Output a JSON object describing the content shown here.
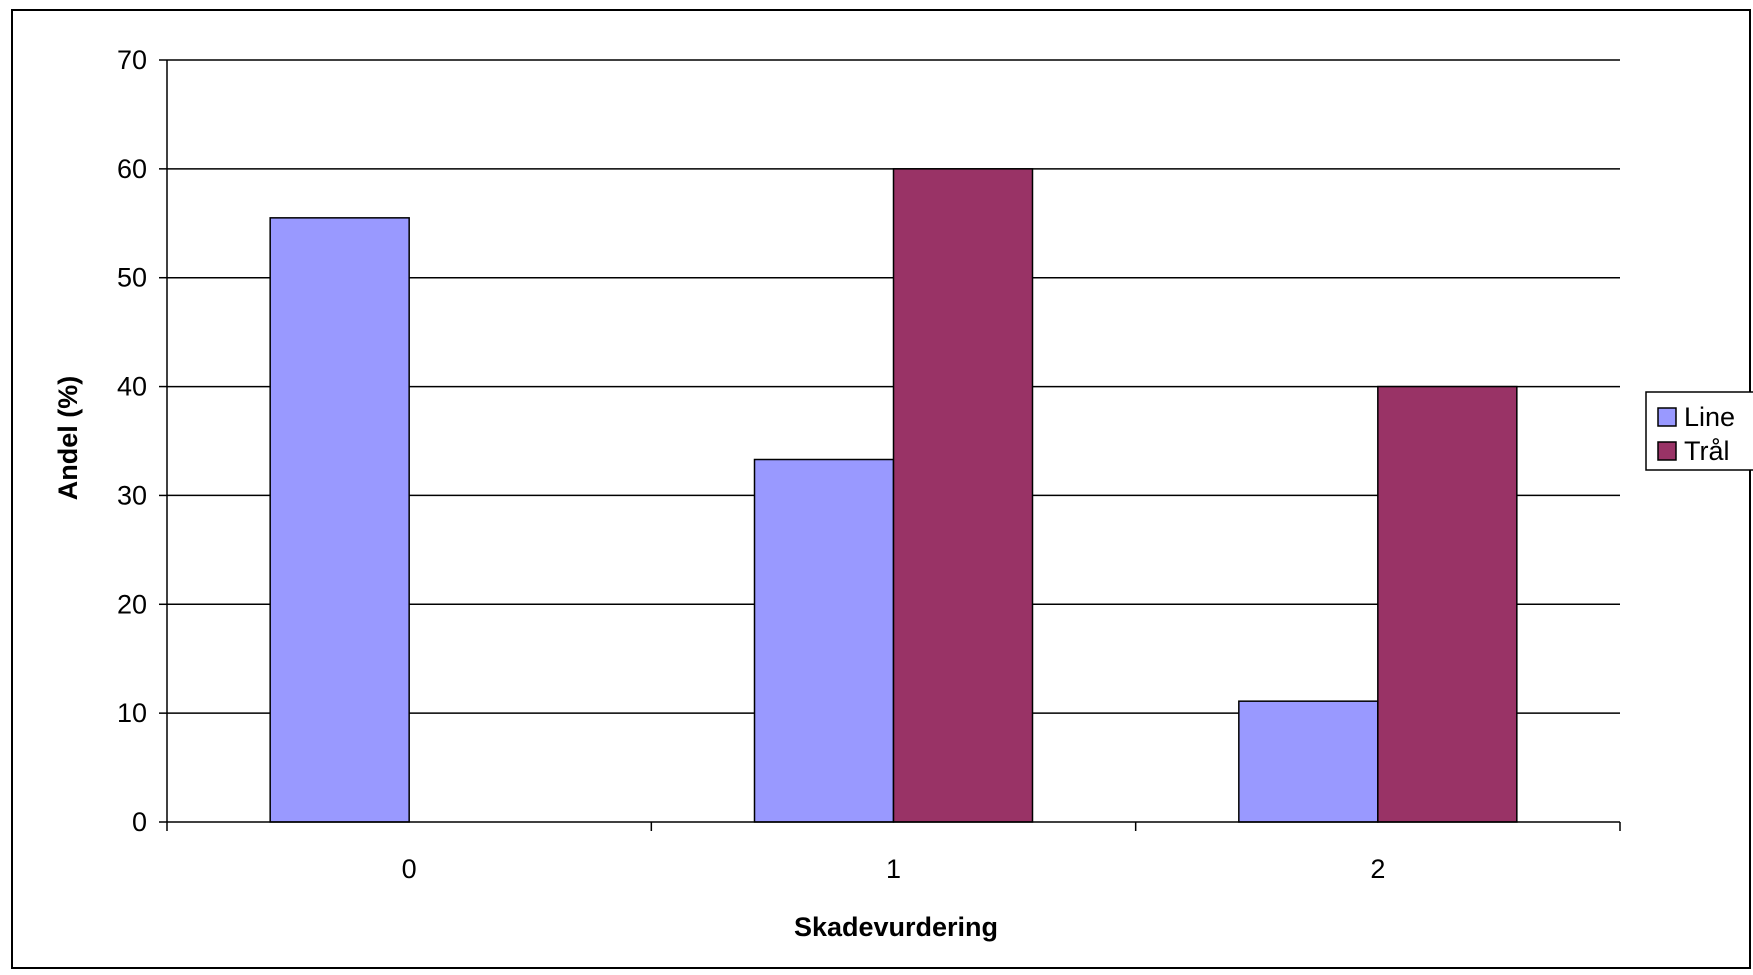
{
  "chart_data": {
    "type": "bar",
    "categories": [
      "0",
      "1",
      "2"
    ],
    "series": [
      {
        "name": "Line",
        "values": [
          55.5,
          33.3,
          11.1
        ],
        "color": "#9999ff"
      },
      {
        "name": "Trål",
        "values": [
          0,
          60,
          40
        ],
        "color": "#993366"
      }
    ],
    "title": "",
    "xlabel": "Skadevurdering",
    "ylabel": "Andel (%)",
    "ylim": [
      0,
      70
    ],
    "yticks": [
      0,
      10,
      20,
      30,
      40,
      50,
      60,
      70
    ],
    "grid": true,
    "legend_position": "right"
  }
}
